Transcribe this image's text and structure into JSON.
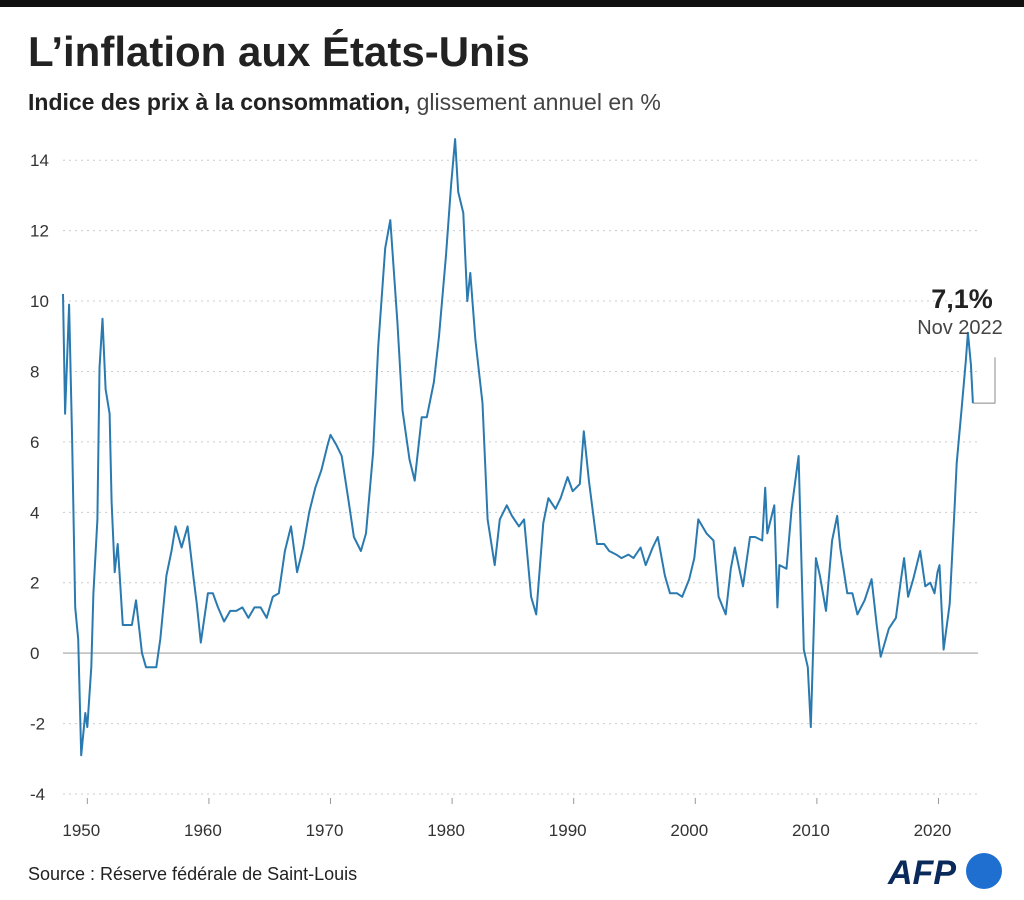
{
  "chart_data": {
    "type": "line",
    "title": "L’inflation aux États-Unis",
    "subtitle_bold": "Indice des prix à la consommation,",
    "subtitle": "glissement annuel en %",
    "source": "Source : Réserve fédérale de Saint-Louis",
    "logo": "AFP",
    "annotation": {
      "label": "7,1%",
      "date": "Nov 2022"
    },
    "grid": true,
    "xlim": [
      1948,
      2023.25
    ],
    "xticks": [
      1950,
      1960,
      1970,
      1980,
      1990,
      2000,
      2010,
      2020
    ],
    "ylim": [
      -4,
      15
    ],
    "yticks": [
      -4,
      -2,
      0,
      2,
      4,
      6,
      8,
      10,
      12,
      14
    ],
    "series": [
      {
        "color": "#2a7ab0",
        "x": [
          1948.0,
          1948.17,
          1948.5,
          1948.75,
          1949.0,
          1949.25,
          1949.5,
          1949.83,
          1950.0,
          1950.33,
          1950.5,
          1950.83,
          1951.0,
          1951.25,
          1951.5,
          1951.83,
          1952.0,
          1952.25,
          1952.5,
          1952.92,
          1953.25,
          1953.67,
          1954.0,
          1954.5,
          1954.83,
          1955.25,
          1955.67,
          1956.0,
          1956.5,
          1956.92,
          1957.25,
          1957.75,
          1958.25,
          1958.75,
          1959.0,
          1959.33,
          1959.92,
          1960.33,
          1960.75,
          1961.25,
          1961.75,
          1962.25,
          1962.75,
          1963.25,
          1963.75,
          1964.25,
          1964.75,
          1965.25,
          1965.75,
          1966.25,
          1966.75,
          1967.25,
          1967.75,
          1968.25,
          1968.75,
          1969.25,
          1969.75,
          1970.0,
          1970.5,
          1970.92,
          1971.5,
          1971.92,
          1972.5,
          1972.92,
          1973.5,
          1973.92,
          1974.5,
          1974.92,
          1975.5,
          1975.92,
          1976.5,
          1976.92,
          1977.5,
          1977.92,
          1978.5,
          1978.92,
          1979.5,
          1979.92,
          1980.25,
          1980.5,
          1980.92,
          1981.25,
          1981.5,
          1981.92,
          1982.5,
          1982.92,
          1983.5,
          1983.92,
          1984.5,
          1984.92,
          1985.5,
          1985.92,
          1986.5,
          1986.92,
          1987.5,
          1987.92,
          1988.5,
          1988.92,
          1989.5,
          1989.92,
          1990.5,
          1990.83,
          1991.25,
          1991.92,
          1992.5,
          1992.92,
          1993.5,
          1993.92,
          1994.5,
          1994.92,
          1995.5,
          1995.92,
          1996.5,
          1996.92,
          1997.5,
          1997.92,
          1998.5,
          1998.92,
          1999.5,
          1999.92,
          2000.25,
          2000.92,
          2001.5,
          2001.92,
          2002.5,
          2002.92,
          2003.25,
          2003.92,
          2004.5,
          2004.92,
          2005.5,
          2005.75,
          2005.92,
          2006.5,
          2006.75,
          2006.92,
          2007.5,
          2007.92,
          2008.5,
          2008.92,
          2009.25,
          2009.5,
          2009.92,
          2010.25,
          2010.75,
          2011.25,
          2011.67,
          2011.92,
          2012.5,
          2012.92,
          2013.33,
          2013.92,
          2014.5,
          2014.92,
          2015.25,
          2015.5,
          2015.92,
          2016.5,
          2016.92,
          2017.17,
          2017.5,
          2017.92,
          2018.5,
          2018.92,
          2019.33,
          2019.67,
          2019.92,
          2020.08,
          2020.42,
          2020.92,
          2021.33,
          2021.5,
          2021.92,
          2022.25,
          2022.42,
          2022.67,
          2022.83
        ],
        "values": [
          10.2,
          6.8,
          9.9,
          6.1,
          1.3,
          0.4,
          -2.9,
          -1.7,
          -2.1,
          -0.4,
          1.7,
          3.8,
          8.1,
          9.5,
          7.5,
          6.8,
          4.3,
          2.3,
          3.1,
          0.8,
          0.8,
          0.8,
          1.5,
          0.0,
          -0.4,
          -0.4,
          -0.4,
          0.4,
          2.2,
          2.9,
          3.6,
          3.0,
          3.6,
          2.1,
          1.4,
          0.3,
          1.7,
          1.7,
          1.3,
          0.9,
          1.2,
          1.2,
          1.3,
          1.0,
          1.3,
          1.3,
          1.0,
          1.6,
          1.7,
          2.9,
          3.6,
          2.3,
          3.0,
          4.0,
          4.7,
          5.2,
          5.9,
          6.2,
          5.9,
          5.6,
          4.3,
          3.3,
          2.9,
          3.4,
          5.7,
          8.7,
          11.5,
          12.3,
          9.4,
          6.9,
          5.5,
          4.9,
          6.7,
          6.7,
          7.7,
          9.0,
          11.3,
          13.3,
          14.6,
          13.1,
          12.5,
          10.0,
          10.8,
          8.9,
          7.1,
          3.8,
          2.5,
          3.8,
          4.2,
          3.9,
          3.6,
          3.8,
          1.6,
          1.1,
          3.7,
          4.4,
          4.1,
          4.4,
          5.0,
          4.6,
          4.8,
          6.3,
          4.9,
          3.1,
          3.1,
          2.9,
          2.8,
          2.7,
          2.8,
          2.7,
          3.0,
          2.5,
          3.0,
          3.3,
          2.2,
          1.7,
          1.7,
          1.6,
          2.1,
          2.7,
          3.8,
          3.4,
          3.2,
          1.6,
          1.1,
          2.4,
          3.0,
          1.9,
          3.3,
          3.3,
          3.2,
          4.7,
          3.4,
          4.2,
          1.3,
          2.5,
          2.4,
          4.1,
          5.6,
          0.1,
          -0.4,
          -2.1,
          2.7,
          2.2,
          1.2,
          3.2,
          3.9,
          3.0,
          1.7,
          1.7,
          1.1,
          1.5,
          2.1,
          0.8,
          -0.1,
          0.2,
          0.7,
          1.0,
          2.1,
          2.7,
          1.6,
          2.1,
          2.9,
          1.9,
          2.0,
          1.7,
          2.3,
          2.5,
          0.1,
          1.4,
          4.2,
          5.4,
          7.0,
          8.3,
          9.1,
          8.2,
          7.1
        ]
      }
    ]
  }
}
